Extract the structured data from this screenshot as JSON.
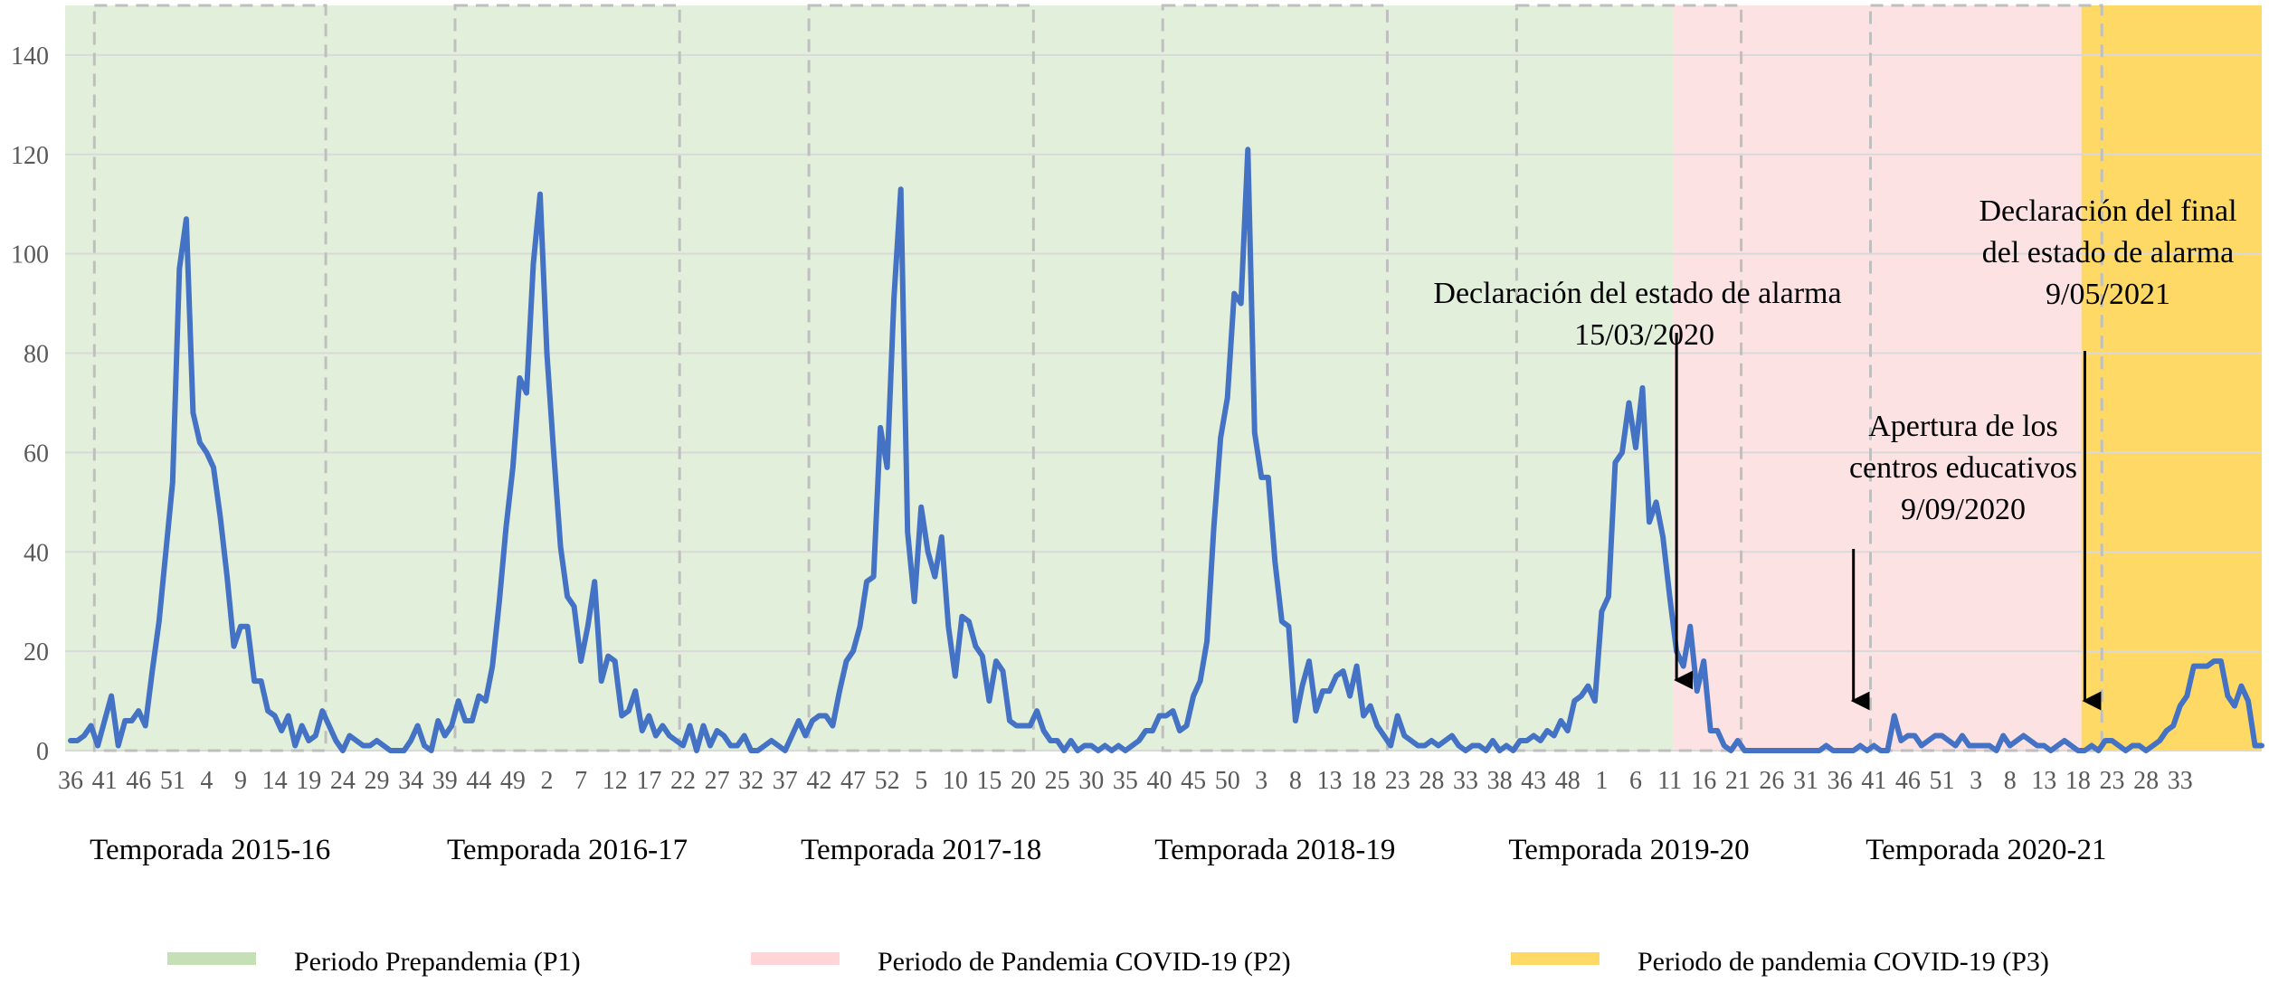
{
  "chart_data": {
    "type": "line",
    "title": "",
    "xlabel": "",
    "ylabel": "",
    "ylim": [
      0,
      150
    ],
    "yticks": [
      0,
      20,
      40,
      60,
      80,
      100,
      120,
      140
    ],
    "grid": true,
    "x_unit": "epidemiological week",
    "x_start": "2015-W36",
    "x_tick_step": 5,
    "x_tick_labels": [
      "36",
      "41",
      "46",
      "51",
      "4",
      "9",
      "14",
      "19",
      "24",
      "29",
      "34",
      "39",
      "44",
      "49",
      "2",
      "7",
      "12",
      "17",
      "22",
      "27",
      "32",
      "37",
      "42",
      "47",
      "52",
      "5",
      "10",
      "15",
      "20",
      "25",
      "30",
      "35",
      "40",
      "45",
      "50",
      "3",
      "8",
      "13",
      "18",
      "23",
      "28",
      "33",
      "38",
      "43",
      "48",
      "1",
      "6",
      "11",
      "16",
      "21",
      "26",
      "31",
      "36",
      "41",
      "46",
      "51",
      "3",
      "8",
      "13",
      "18",
      "23",
      "28",
      "33"
    ],
    "series": [
      {
        "name": "",
        "color": "#4472C4",
        "values": [
          2,
          2,
          3,
          5,
          1,
          6,
          11,
          1,
          6,
          6,
          8,
          5,
          16,
          26,
          40,
          54,
          97,
          107,
          68,
          62,
          60,
          57,
          47,
          35,
          21,
          25,
          25,
          14,
          14,
          8,
          7,
          4,
          7,
          1,
          5,
          2,
          3,
          8,
          5,
          2,
          0,
          3,
          2,
          1,
          1,
          2,
          1,
          0,
          0,
          0,
          2,
          5,
          1,
          0,
          6,
          3,
          5,
          10,
          6,
          6,
          11,
          10,
          17,
          30,
          45,
          57,
          75,
          72,
          98,
          112,
          80,
          60,
          41,
          31,
          29,
          18,
          25,
          34,
          14,
          19,
          18,
          7,
          8,
          12,
          4,
          7,
          3,
          5,
          3,
          2,
          1,
          5,
          0,
          5,
          1,
          4,
          3,
          1,
          1,
          3,
          0,
          0,
          1,
          2,
          1,
          0,
          3,
          6,
          3,
          6,
          7,
          7,
          5,
          12,
          18,
          20,
          25,
          34,
          35,
          65,
          57,
          91,
          113,
          44,
          30,
          49,
          40,
          35,
          43,
          25,
          15,
          27,
          26,
          21,
          19,
          10,
          18,
          16,
          6,
          5,
          5,
          5,
          8,
          4,
          2,
          2,
          0,
          2,
          0,
          1,
          1,
          0,
          1,
          0,
          1,
          0,
          1,
          2,
          4,
          4,
          7,
          7,
          8,
          4,
          5,
          11,
          14,
          22,
          45,
          63,
          71,
          92,
          90,
          121,
          64,
          55,
          55,
          38,
          26,
          25,
          6,
          13,
          18,
          8,
          12,
          12,
          15,
          16,
          11,
          17,
          7,
          9,
          5,
          3,
          1,
          7,
          3,
          2,
          1,
          1,
          2,
          1,
          2,
          3,
          1,
          0,
          1,
          1,
          0,
          2,
          0,
          1,
          0,
          2,
          2,
          3,
          2,
          4,
          3,
          6,
          4,
          10,
          11,
          13,
          10,
          28,
          31,
          58,
          60,
          70,
          61,
          73,
          46,
          50,
          43,
          31,
          20,
          17,
          25,
          12,
          18,
          4,
          4,
          1,
          0,
          2,
          0,
          0,
          0,
          0,
          0,
          0,
          0,
          0,
          0,
          0,
          0,
          0,
          1,
          0,
          0,
          0,
          0,
          1,
          0,
          1,
          0,
          0,
          7,
          2,
          3,
          3,
          1,
          2,
          3,
          3,
          2,
          1,
          3,
          1,
          1,
          1,
          1,
          0,
          3,
          1,
          2,
          3,
          2,
          1,
          1,
          0,
          1,
          2,
          1,
          0,
          0,
          1,
          0,
          2,
          2,
          1,
          0,
          1,
          1,
          0,
          1,
          2,
          4,
          5,
          9,
          11,
          17,
          17,
          17,
          18,
          18,
          11,
          9,
          13,
          10,
          1,
          1
        ]
      }
    ],
    "periods": [
      {
        "label": "Periodo Prepandemia (P1)",
        "color": "#E2EFDA",
        "legend_color": "#C5E0B4",
        "x_start": "2015-W36",
        "x_end": "2020-W10"
      },
      {
        "label": "Periodo de Pandemia COVID-19 (P2)",
        "color": "#FDE2E4",
        "legend_color": "#FFD5D8",
        "x_start": "2020-W11",
        "x_end": "2021-W17"
      },
      {
        "label": "Periodo de pandemia COVID-19 (P3)",
        "color": "#FFD966",
        "legend_color": "#FFD966",
        "x_start": "2021-W18",
        "x_end": "2021-W34"
      }
    ],
    "seasons": [
      {
        "label": "Temporada 2015-16",
        "x_start": "2015-W40",
        "x_end": "2016-W20"
      },
      {
        "label": "Temporada 2016-17",
        "x_start": "2016-W40",
        "x_end": "2017-W20"
      },
      {
        "label": "Temporada 2017-18",
        "x_start": "2017-W40",
        "x_end": "2018-W20"
      },
      {
        "label": "Temporada 2018-19",
        "x_start": "2018-W40",
        "x_end": "2019-W20"
      },
      {
        "label": "Temporada 2019-20",
        "x_start": "2019-W40",
        "x_end": "2020-W20"
      },
      {
        "label": "Temporada 2020-21",
        "x_start": "2020-W40",
        "x_end": "2021-W20"
      }
    ],
    "annotations": [
      {
        "lines": [
          "Declaración del estado de alarma",
          "15/03/2020"
        ],
        "x": "2020-W11"
      },
      {
        "lines": [
          "Apertura de los",
          "centros educativos",
          "9/09/2020"
        ],
        "x": "2020-W37"
      },
      {
        "lines": [
          "Declaración del final",
          "del estado de alarma",
          "9/05/2021"
        ],
        "x": "2021-W18"
      }
    ]
  }
}
